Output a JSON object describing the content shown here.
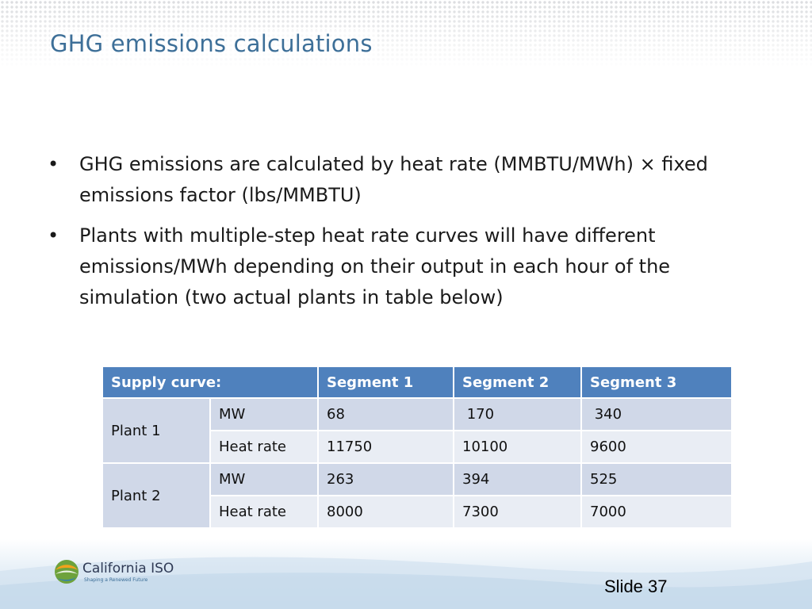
{
  "slide": {
    "title": "GHG emissions calculations",
    "bullets": [
      "GHG emissions are calculated by heat rate (MMBTU/MWh) × fixed emissions factor (lbs/MMBTU)",
      "Plants with multiple-step heat rate curves will have different emissions/MWh depending on their output in each hour of the simulation (two actual plants in table below)"
    ],
    "bullet_symbol": "•",
    "table": {
      "headers": [
        "Supply curve:",
        "Segment 1",
        "Segment 2",
        "Segment 3"
      ],
      "plants": [
        {
          "name": "Plant 1",
          "rows": [
            {
              "metric": "MW",
              "values": [
                "68",
                " 170",
                " 340"
              ]
            },
            {
              "metric": "Heat rate",
              "values": [
                "11750",
                "10100",
                "9600"
              ]
            }
          ]
        },
        {
          "name": "Plant 2",
          "rows": [
            {
              "metric": "MW",
              "values": [
                "263",
                "394",
                "525"
              ]
            },
            {
              "metric": "Heat rate",
              "values": [
                "8000",
                "7300",
                "7000"
              ]
            }
          ]
        }
      ]
    },
    "footer": {
      "logo_name": "California ISO",
      "logo_tagline": "Shaping a Renewed Future",
      "slide_number": "Slide 37"
    }
  },
  "colors": {
    "title": "#3d6f98",
    "table_header": "#4f81bd",
    "table_row_dark": "#d0d8e8",
    "table_row_light": "#e9edf4"
  }
}
